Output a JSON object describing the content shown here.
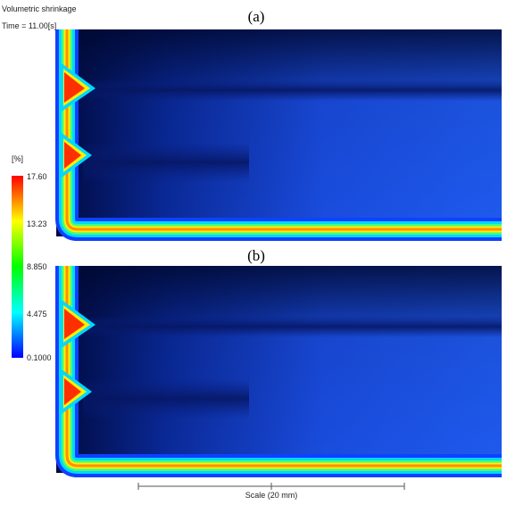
{
  "header": {
    "title": "Volumetric shrinkage",
    "time": "Time = 11.00[s]"
  },
  "panels": [
    {
      "label": "(a)"
    },
    {
      "label": "(b)"
    }
  ],
  "legend": {
    "unit": "[%]",
    "labels": [
      "17.60",
      "13.23",
      "8.850",
      "4.475",
      "0.1000"
    ]
  },
  "scale": {
    "label": "Scale (20 mm)"
  }
}
